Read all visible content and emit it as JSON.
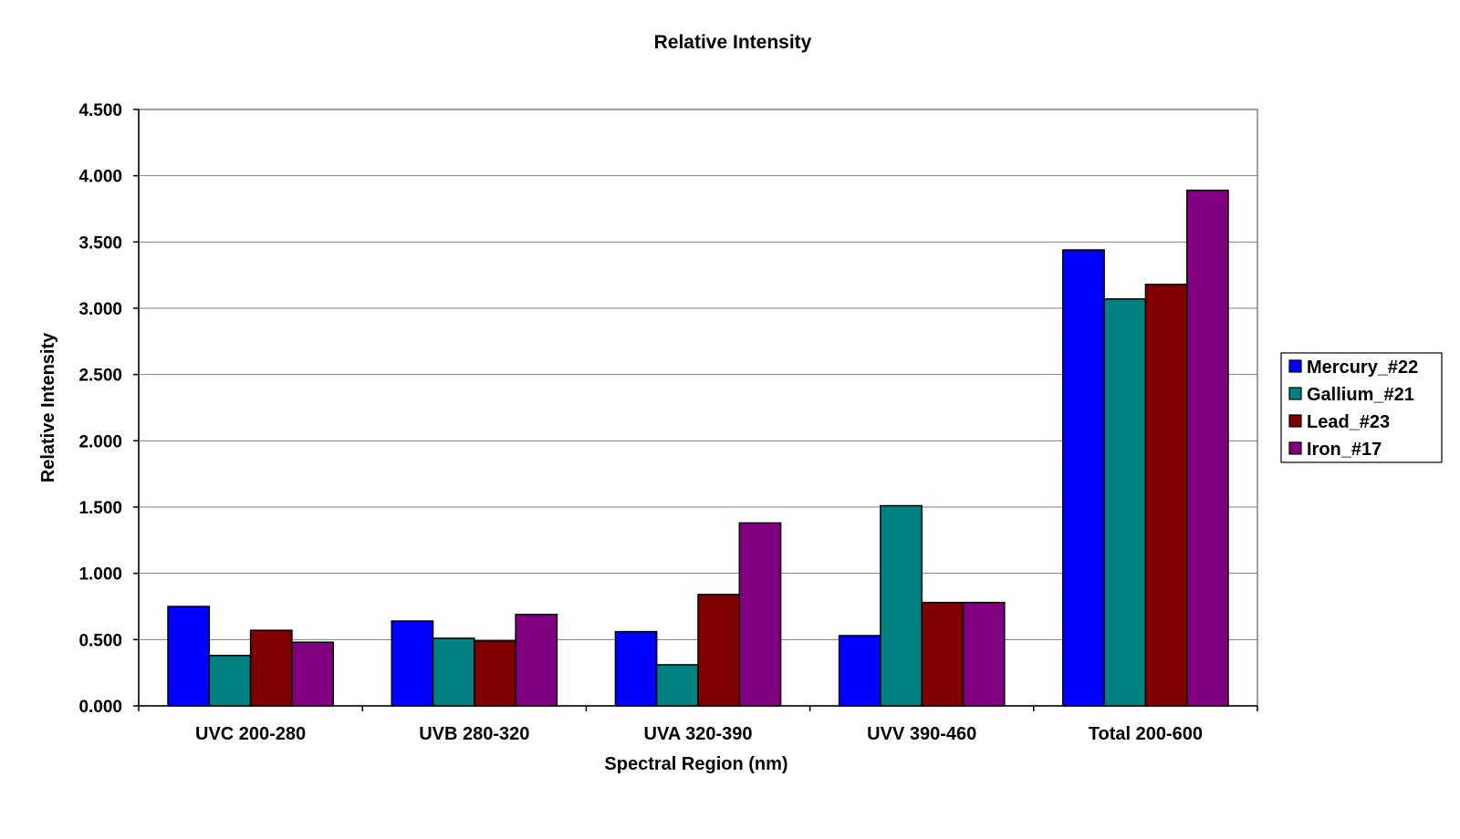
{
  "chart_data": {
    "type": "bar",
    "title": "Relative Intensity",
    "xlabel": "Spectral Region (nm)",
    "ylabel": "Relative Intensity",
    "ylim": [
      0,
      4.5
    ],
    "yticks": [
      "0.000",
      "0.500",
      "1.000",
      "1.500",
      "2.000",
      "2.500",
      "3.000",
      "3.500",
      "4.000",
      "4.500"
    ],
    "ytick_values": [
      0,
      0.5,
      1.0,
      1.5,
      2.0,
      2.5,
      3.0,
      3.5,
      4.0,
      4.5
    ],
    "categories": [
      "UVC 200-280",
      "UVB 280-320",
      "UVA 320-390",
      "UVV 390-460",
      "Total 200-600"
    ],
    "series": [
      {
        "name": "Mercury_#22",
        "color": "#0000ff",
        "values": [
          0.75,
          0.64,
          0.56,
          0.53,
          3.44
        ]
      },
      {
        "name": "Gallium_#21",
        "color": "#008080",
        "values": [
          0.38,
          0.51,
          0.31,
          1.51,
          3.07
        ]
      },
      {
        "name": "Lead_#23",
        "color": "#800000",
        "values": [
          0.57,
          0.49,
          0.84,
          0.78,
          3.18
        ]
      },
      {
        "name": "Iron_#17",
        "color": "#800080",
        "values": [
          0.48,
          0.69,
          1.38,
          0.78,
          3.89
        ]
      }
    ],
    "grid": true,
    "legend_position": "right"
  }
}
